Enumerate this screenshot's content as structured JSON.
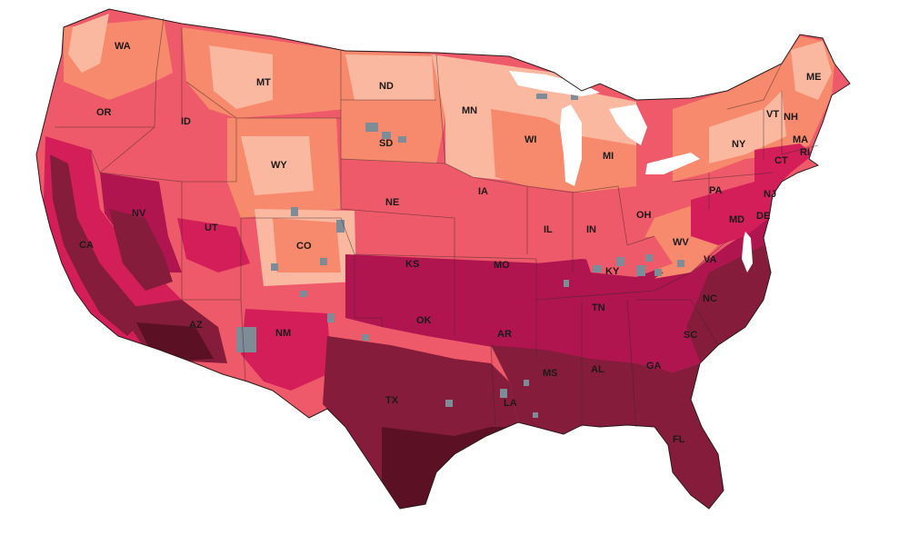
{
  "map": {
    "colors": {
      "c1": "#fbb8a0",
      "c2": "#f7896c",
      "c3": "#ef5a6a",
      "c4": "#d41e5a",
      "c5": "#b01550",
      "c6": "#861c3c",
      "c7": "#5c1024",
      "nodata": "#7d8c96",
      "water": "#ffffff"
    },
    "state_labels": [
      "WA",
      "OR",
      "CA",
      "NV",
      "ID",
      "MT",
      "WY",
      "UT",
      "AZ",
      "CO",
      "NM",
      "ND",
      "SD",
      "NE",
      "KS",
      "OK",
      "TX",
      "MN",
      "IA",
      "MO",
      "AR",
      "LA",
      "WI",
      "IL",
      "MI",
      "IN",
      "KY",
      "TN",
      "MS",
      "AL",
      "OH",
      "WV",
      "VA",
      "NC",
      "SC",
      "GA",
      "FL",
      "PA",
      "NY",
      "VT",
      "NH",
      "ME",
      "MA",
      "RI",
      "CT",
      "NJ",
      "DE",
      "MD"
    ]
  }
}
